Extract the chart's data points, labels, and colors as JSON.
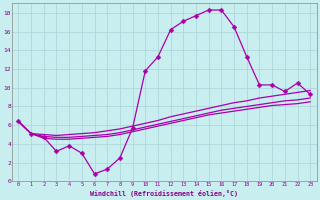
{
  "xlabel": "Windchill (Refroidissement éolien,°C)",
  "bg_color": "#c8eef0",
  "grid_color": "#b0d8dc",
  "line_color": "#aa00aa",
  "xlim": [
    -0.5,
    23.5
  ],
  "ylim": [
    0,
    19
  ],
  "line1_x": [
    0,
    1,
    2,
    3,
    4,
    5,
    6,
    7,
    8,
    9,
    10,
    11,
    12,
    13,
    14,
    15,
    16,
    17,
    18,
    19,
    20,
    21,
    22,
    23
  ],
  "line1_y": [
    6.4,
    5.1,
    4.7,
    3.2,
    3.8,
    3.0,
    0.8,
    1.3,
    2.5,
    5.7,
    11.8,
    13.3,
    16.2,
    17.1,
    17.7,
    18.3,
    18.3,
    16.5,
    13.3,
    10.3,
    10.3,
    9.6,
    10.5,
    9.3
  ],
  "line2_x": [
    0,
    1,
    2,
    3,
    4,
    5,
    6,
    7,
    8,
    9,
    10,
    11,
    12,
    13,
    14,
    15,
    16,
    17,
    18,
    19,
    20,
    21,
    22,
    23
  ],
  "line2_y": [
    6.4,
    5.1,
    5.0,
    4.9,
    5.0,
    5.1,
    5.2,
    5.4,
    5.6,
    5.9,
    6.2,
    6.5,
    6.9,
    7.2,
    7.5,
    7.8,
    8.1,
    8.4,
    8.6,
    8.9,
    9.1,
    9.3,
    9.5,
    9.7
  ],
  "line3_x": [
    0,
    1,
    2,
    3,
    4,
    5,
    6,
    7,
    8,
    9,
    10,
    11,
    12,
    13,
    14,
    15,
    16,
    17,
    18,
    19,
    20,
    21,
    22,
    23
  ],
  "line3_y": [
    6.4,
    5.1,
    4.8,
    4.7,
    4.7,
    4.8,
    4.9,
    5.0,
    5.2,
    5.5,
    5.8,
    6.1,
    6.4,
    6.7,
    7.0,
    7.3,
    7.6,
    7.8,
    8.0,
    8.2,
    8.4,
    8.6,
    8.7,
    8.9
  ],
  "line4_x": [
    0,
    1,
    2,
    3,
    4,
    5,
    6,
    7,
    8,
    9,
    10,
    11,
    12,
    13,
    14,
    15,
    16,
    17,
    18,
    19,
    20,
    21,
    22,
    23
  ],
  "line4_y": [
    6.4,
    5.1,
    4.6,
    4.5,
    4.5,
    4.6,
    4.7,
    4.8,
    5.0,
    5.3,
    5.6,
    5.9,
    6.2,
    6.5,
    6.8,
    7.1,
    7.3,
    7.5,
    7.7,
    7.9,
    8.1,
    8.2,
    8.3,
    8.5
  ]
}
